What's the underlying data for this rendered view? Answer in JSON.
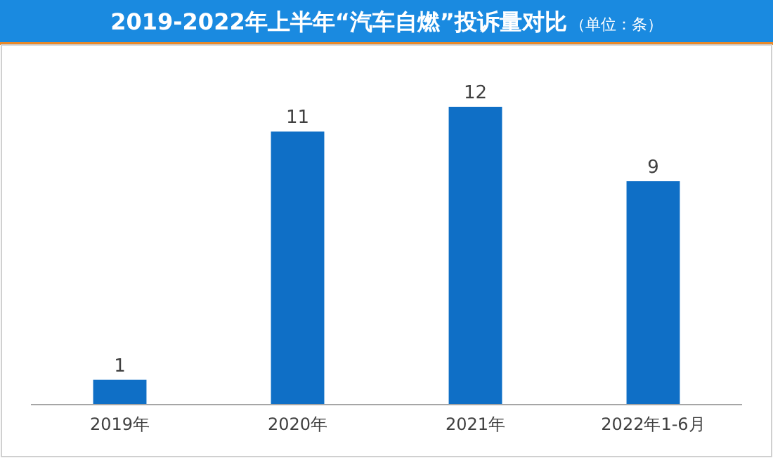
{
  "chart_data": {
    "type": "bar",
    "title": "2019-2022年上半年“汽车自燃”投诉量对比",
    "subtitle": "（单位：条）",
    "categories": [
      "2019年",
      "2020年",
      "2021年",
      "2022年1-6月"
    ],
    "values": [
      1,
      11,
      12,
      9
    ],
    "color": "#0f6fc6",
    "data_labels": true
  }
}
